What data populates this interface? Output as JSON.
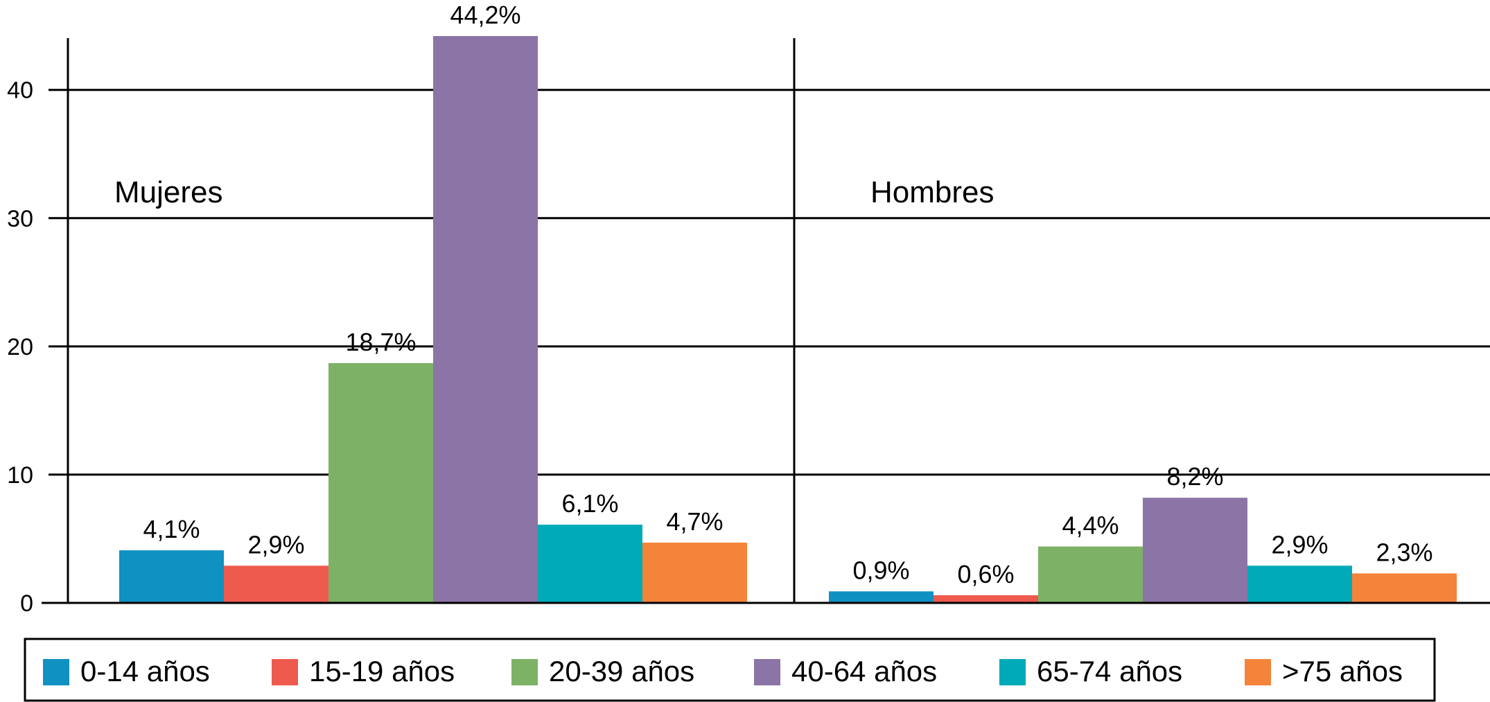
{
  "chart_data": {
    "type": "bar",
    "ylim": [
      0,
      44.2
    ],
    "y_ticks": [
      "0",
      "10",
      "20",
      "30",
      "40"
    ],
    "grid": true,
    "legend_position": "bottom",
    "groups": [
      "Mujeres",
      "Hombres"
    ],
    "series": [
      {
        "name": "0-14 años",
        "color": "#0f91c2",
        "values": [
          4.1,
          0.9
        ],
        "labels": [
          "4,1%",
          "0,9%"
        ]
      },
      {
        "name": "15-19 años",
        "color": "#ee5a4e",
        "values": [
          2.9,
          0.6
        ],
        "labels": [
          "2,9%",
          "0,6%"
        ]
      },
      {
        "name": "20-39 años",
        "color": "#7db266",
        "values": [
          18.7,
          4.4
        ],
        "labels": [
          "18,7%",
          "4,4%"
        ]
      },
      {
        "name": "40-64 años",
        "color": "#8b74a6",
        "values": [
          44.2,
          8.2
        ],
        "labels": [
          "44,2%",
          "8,2%"
        ]
      },
      {
        "name": "65-74 años",
        "color": "#00aab8",
        "values": [
          6.1,
          2.9
        ],
        "labels": [
          "6,1%",
          "2,9%"
        ]
      },
      {
        "name": ">75 años",
        "color": "#f4843a",
        "values": [
          4.7,
          2.3
        ],
        "labels": [
          "4,7%",
          "2,3%"
        ]
      }
    ]
  }
}
